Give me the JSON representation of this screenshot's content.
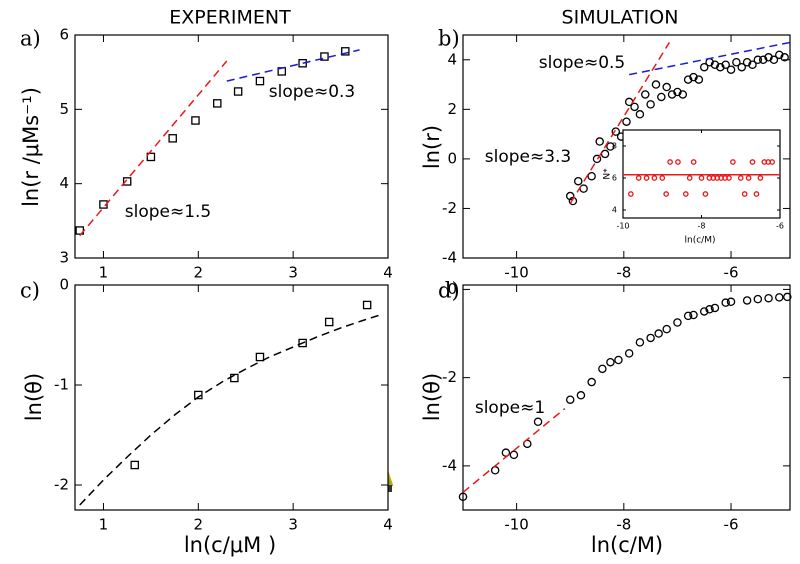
{
  "chart_data": [
    {
      "type": "scatter",
      "label": "a)",
      "title": "EXPERIMENT",
      "ylabel": "ln(r /μMs⁻¹)",
      "xlim": [
        0.7,
        4
      ],
      "ylim": [
        3,
        6
      ],
      "xticks": [
        1,
        2,
        3,
        4
      ],
      "yticks": [
        3,
        4,
        5,
        6
      ],
      "series": [
        {
          "style": "square",
          "color": "#000000",
          "x": [
            0.75,
            1.0,
            1.25,
            1.5,
            1.73,
            1.97,
            2.2,
            2.42,
            2.65,
            2.88,
            3.1,
            3.33,
            3.55
          ],
          "values": [
            3.37,
            3.72,
            4.03,
            4.36,
            4.61,
            4.85,
            5.08,
            5.24,
            5.38,
            5.51,
            5.62,
            5.71,
            5.78
          ]
        },
        {
          "style": "dashed",
          "color": "#e8191c",
          "x": [
            0.75,
            2.3
          ],
          "values": [
            3.3,
            5.65
          ]
        },
        {
          "style": "dashed",
          "color": "#1a1adc",
          "x": [
            2.3,
            3.7
          ],
          "values": [
            5.38,
            5.8
          ]
        }
      ],
      "annotations": [
        {
          "text": "slope≈1.5",
          "color": "#e8191c"
        },
        {
          "text": "slope≈0.3",
          "color": "#1a1adc"
        }
      ]
    },
    {
      "type": "scatter",
      "label": "b)",
      "title": "SIMULATION",
      "ylabel": "ln(r)",
      "xlim": [
        -11,
        -4.9
      ],
      "ylim": [
        -4,
        5
      ],
      "xticks": [
        -10,
        -8,
        -6
      ],
      "yticks": [
        -4,
        -2,
        0,
        2,
        4
      ],
      "series": [
        {
          "style": "circle",
          "color": "#000000",
          "x": [
            -9.0,
            -8.95,
            -8.85,
            -8.75,
            -8.6,
            -8.5,
            -8.45,
            -8.35,
            -8.25,
            -8.15,
            -8.05,
            -7.95,
            -7.9,
            -7.8,
            -7.7,
            -7.6,
            -7.5,
            -7.4,
            -7.3,
            -7.2,
            -7.1,
            -7.0,
            -6.9,
            -6.8,
            -6.7,
            -6.6,
            -6.5,
            -6.4,
            -6.3,
            -6.2,
            -6.1,
            -6.0,
            -5.9,
            -5.8,
            -5.7,
            -5.6,
            -5.5,
            -5.4,
            -5.3,
            -5.2,
            -5.1,
            -5.0
          ],
          "values": [
            -1.5,
            -1.7,
            -0.9,
            -1.2,
            -0.7,
            0.0,
            0.7,
            0.2,
            0.5,
            1.1,
            0.9,
            1.5,
            2.3,
            2.1,
            1.8,
            2.6,
            2.2,
            3.0,
            2.5,
            2.9,
            2.6,
            2.7,
            2.6,
            3.2,
            3.3,
            3.2,
            3.7,
            3.9,
            3.8,
            3.7,
            3.8,
            3.6,
            3.9,
            3.7,
            3.9,
            3.8,
            4.0,
            4.0,
            4.1,
            4.0,
            4.2,
            4.1
          ]
        },
        {
          "style": "dashed",
          "color": "#e8191c",
          "x": [
            -9.0,
            -7.15
          ],
          "values": [
            -1.8,
            4.7
          ]
        },
        {
          "style": "dashed",
          "color": "#1a1adc",
          "x": [
            -7.9,
            -4.9
          ],
          "values": [
            3.4,
            4.7
          ]
        }
      ],
      "annotations": [
        {
          "text": "slope≈0.5",
          "color": "#1a1adc"
        },
        {
          "text": "slope≈3.3",
          "color": "#e8191c"
        }
      ]
    },
    {
      "type": "scatter",
      "label": "c)",
      "xlabel": "ln(c/μM )",
      "ylabel": "ln(θ)",
      "xlim": [
        0.7,
        4
      ],
      "ylim": [
        -2.25,
        0
      ],
      "xticks": [
        1,
        2,
        3,
        4
      ],
      "yticks": [
        -2,
        -1,
        0
      ],
      "series": [
        {
          "style": "square",
          "color": "#000000",
          "x": [
            1.33,
            2.0,
            2.38,
            2.65,
            3.1,
            3.38,
            3.78
          ],
          "values": [
            -1.8,
            -1.1,
            -0.93,
            -0.72,
            -0.58,
            -0.37,
            -0.2
          ]
        },
        {
          "style": "dashed",
          "color": "#000000",
          "x": [
            0.75,
            1.0,
            1.25,
            1.5,
            1.75,
            2.0,
            2.25,
            2.5,
            2.75,
            3.0,
            3.25,
            3.5,
            3.75,
            3.95
          ],
          "values": [
            -2.2,
            -1.95,
            -1.72,
            -1.5,
            -1.3,
            -1.12,
            -0.97,
            -0.84,
            -0.72,
            -0.62,
            -0.52,
            -0.43,
            -0.35,
            -0.29
          ]
        }
      ],
      "annotations": []
    },
    {
      "type": "scatter",
      "label": "d)",
      "xlabel": "ln(c/M)",
      "ylabel": "ln(θ)",
      "xlim": [
        -11,
        -4.9
      ],
      "ylim": [
        -5,
        0.1
      ],
      "xticks": [
        -10,
        -8,
        -6
      ],
      "yticks": [
        -4,
        -2,
        0
      ],
      "series": [
        {
          "style": "circle",
          "color": "#000000",
          "x": [
            -11.0,
            -10.4,
            -10.2,
            -10.05,
            -9.8,
            -9.6,
            -9.0,
            -8.8,
            -8.6,
            -8.4,
            -8.25,
            -8.1,
            -7.9,
            -7.7,
            -7.5,
            -7.35,
            -7.2,
            -7.0,
            -6.8,
            -6.7,
            -6.5,
            -6.4,
            -6.3,
            -6.1,
            -6.0,
            -5.7,
            -5.5,
            -5.3,
            -5.1,
            -4.95
          ],
          "values": [
            -4.7,
            -4.1,
            -3.7,
            -3.75,
            -3.5,
            -3.0,
            -2.5,
            -2.4,
            -2.1,
            -1.8,
            -1.65,
            -1.6,
            -1.45,
            -1.2,
            -1.1,
            -1.0,
            -0.9,
            -0.75,
            -0.6,
            -0.58,
            -0.5,
            -0.45,
            -0.42,
            -0.3,
            -0.28,
            -0.25,
            -0.22,
            -0.2,
            -0.18,
            -0.17
          ]
        },
        {
          "style": "dashed",
          "color": "#e8191c",
          "x": [
            -11.0,
            -9.1
          ],
          "values": [
            -4.6,
            -2.7
          ]
        }
      ],
      "annotations": [
        {
          "text": "slope≈1",
          "color": "#e8191c"
        }
      ]
    },
    {
      "type": "scatter",
      "xlabel": "ln(c/M)",
      "ylabel": "N*",
      "xlim": [
        -10,
        -6
      ],
      "ylim": [
        3.5,
        9
      ],
      "xticks": [
        -10,
        -8,
        -6
      ],
      "yticks": [
        4,
        6,
        8
      ],
      "series": [
        {
          "style": "circle",
          "color": "#e8191c",
          "x": [
            -9.8,
            -9.6,
            -9.4,
            -9.2,
            -9.0,
            -8.9,
            -8.8,
            -8.6,
            -8.4,
            -8.3,
            -8.2,
            -8.0,
            -7.9,
            -7.8,
            -7.7,
            -7.6,
            -7.5,
            -7.4,
            -7.3,
            -7.2,
            -7.0,
            -6.9,
            -6.8,
            -6.7,
            -6.6,
            -6.5,
            -6.4,
            -6.3,
            -6.2
          ],
          "values": [
            5,
            6,
            6,
            6,
            6,
            5,
            7,
            7,
            5,
            6,
            7,
            6,
            5,
            6,
            6,
            6,
            6,
            6,
            6,
            7,
            6,
            5,
            6,
            7,
            5,
            6,
            7,
            7,
            7
          ]
        },
        {
          "style": "solid",
          "color": "#e8191c",
          "x": [
            -10,
            -6
          ],
          "values": [
            6.2,
            6.2
          ]
        }
      ],
      "annotations": []
    }
  ]
}
